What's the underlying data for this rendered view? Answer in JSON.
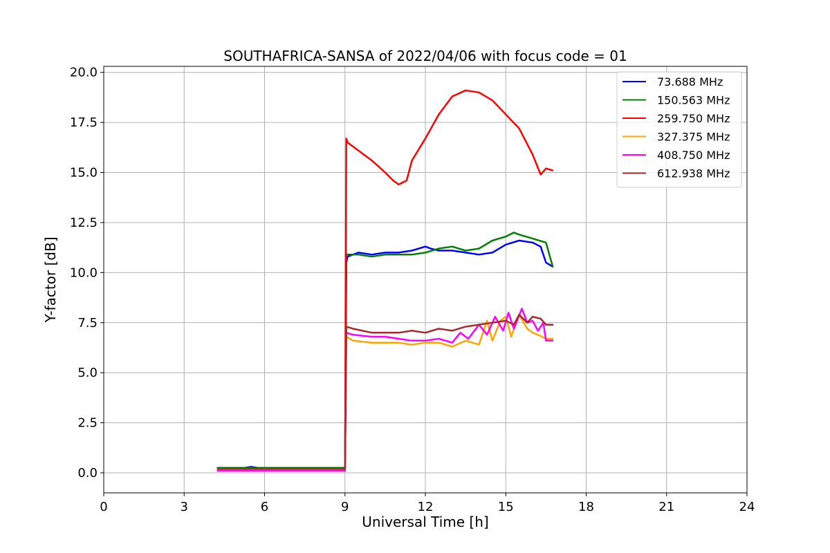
{
  "chart_data": {
    "type": "line",
    "title": "SOUTHAFRICA-SANSA of 2022/04/06 with focus code = 01",
    "xlabel": "Universal Time [h]",
    "ylabel": "Y-factor [dB]",
    "xlim": [
      0,
      24
    ],
    "ylim": [
      -1.0,
      20.3
    ],
    "xticks": [
      0,
      3,
      6,
      9,
      12,
      15,
      18,
      21,
      24
    ],
    "xtick_labels": [
      "0",
      "3",
      "6",
      "9",
      "12",
      "15",
      "18",
      "21",
      "24"
    ],
    "yticks": [
      0.0,
      2.5,
      5.0,
      7.5,
      10.0,
      12.5,
      15.0,
      17.5,
      20.0
    ],
    "ytick_labels": [
      "0.0",
      "2.5",
      "5.0",
      "7.5",
      "10.0",
      "12.5",
      "15.0",
      "17.5",
      "20.0"
    ],
    "grid": true,
    "legend_position": "top-right",
    "series": [
      {
        "name": " 73.688 MHz",
        "color": "#0000ff",
        "x": [
          4.25,
          5.0,
          5.5,
          6.0,
          7.0,
          8.0,
          9.0,
          9.05,
          9.1,
          9.3,
          9.5,
          10.0,
          10.5,
          11.0,
          11.5,
          12.0,
          12.2,
          12.5,
          13.0,
          13.5,
          14.0,
          14.5,
          15.0,
          15.5,
          16.0,
          16.3,
          16.5,
          16.75
        ],
        "y": [
          0.2,
          0.2,
          0.3,
          0.2,
          0.2,
          0.2,
          0.2,
          10.5,
          10.8,
          10.9,
          11.0,
          10.9,
          11.0,
          11.0,
          11.1,
          11.3,
          11.2,
          11.1,
          11.1,
          11.0,
          10.9,
          11.0,
          11.4,
          11.6,
          11.5,
          11.3,
          10.5,
          10.3
        ]
      },
      {
        "name": "150.563 MHz",
        "color": "#008000",
        "x": [
          4.25,
          5.0,
          6.0,
          7.0,
          8.0,
          9.0,
          9.05,
          9.3,
          9.5,
          10.0,
          10.5,
          11.0,
          11.5,
          12.0,
          12.5,
          13.0,
          13.5,
          14.0,
          14.5,
          15.0,
          15.3,
          15.5,
          16.0,
          16.5,
          16.75
        ],
        "y": [
          0.25,
          0.25,
          0.25,
          0.25,
          0.25,
          0.25,
          10.9,
          10.9,
          10.9,
          10.8,
          10.9,
          10.9,
          10.9,
          11.0,
          11.2,
          11.3,
          11.1,
          11.2,
          11.6,
          11.8,
          12.0,
          11.9,
          11.7,
          11.5,
          10.3
        ]
      },
      {
        "name": "259.750 MHz",
        "color": "#ff0000",
        "x": [
          4.25,
          5.0,
          6.0,
          7.0,
          8.0,
          9.0,
          9.05,
          9.1,
          9.5,
          10.0,
          10.5,
          10.8,
          11.0,
          11.3,
          11.5,
          12.0,
          12.5,
          13.0,
          13.5,
          14.0,
          14.5,
          15.0,
          15.5,
          16.0,
          16.3,
          16.5,
          16.75
        ],
        "y": [
          0.2,
          0.2,
          0.2,
          0.2,
          0.2,
          0.2,
          16.7,
          16.5,
          16.1,
          15.6,
          15.0,
          14.6,
          14.4,
          14.6,
          15.6,
          16.7,
          17.9,
          18.8,
          19.1,
          19.0,
          18.6,
          17.9,
          17.2,
          15.9,
          14.9,
          15.2,
          15.1
        ]
      },
      {
        "name": "327.375 MHz",
        "color": "#ffa500",
        "x": [
          4.25,
          6.0,
          8.0,
          9.0,
          9.05,
          9.3,
          10.0,
          10.5,
          11.0,
          11.5,
          12.0,
          12.5,
          13.0,
          13.5,
          14.0,
          14.3,
          14.5,
          14.8,
          15.0,
          15.2,
          15.5,
          15.8,
          16.0,
          16.2,
          16.5,
          16.75
        ],
        "y": [
          0.15,
          0.15,
          0.15,
          0.15,
          6.8,
          6.6,
          6.5,
          6.5,
          6.5,
          6.4,
          6.5,
          6.5,
          6.3,
          6.6,
          6.4,
          7.6,
          6.6,
          7.6,
          7.8,
          6.8,
          7.9,
          7.2,
          7.0,
          6.9,
          6.7,
          6.7
        ]
      },
      {
        "name": "408.750 MHz",
        "color": "#ff00ff",
        "x": [
          4.25,
          6.0,
          8.0,
          9.0,
          9.05,
          9.3,
          10.0,
          10.5,
          11.0,
          11.5,
          12.0,
          12.5,
          13.0,
          13.3,
          13.6,
          14.0,
          14.3,
          14.6,
          14.9,
          15.1,
          15.3,
          15.6,
          15.8,
          16.0,
          16.2,
          16.4,
          16.5,
          16.75
        ],
        "y": [
          0.1,
          0.1,
          0.1,
          0.1,
          7.0,
          6.9,
          6.8,
          6.8,
          6.7,
          6.6,
          6.6,
          6.7,
          6.5,
          7.0,
          6.7,
          7.4,
          6.9,
          7.8,
          7.1,
          8.0,
          7.2,
          8.2,
          7.5,
          7.6,
          7.1,
          7.5,
          6.6,
          6.6
        ]
      },
      {
        "name": "612.938 MHz",
        "color": "#a52a2a",
        "x": [
          4.25,
          6.0,
          8.0,
          9.0,
          9.05,
          9.3,
          10.0,
          10.5,
          11.0,
          11.5,
          12.0,
          12.5,
          13.0,
          13.5,
          14.0,
          14.5,
          15.0,
          15.3,
          15.5,
          15.8,
          16.0,
          16.3,
          16.5,
          16.75
        ],
        "y": [
          0.2,
          0.2,
          0.2,
          0.2,
          7.3,
          7.2,
          7.0,
          7.0,
          7.0,
          7.1,
          7.0,
          7.2,
          7.1,
          7.3,
          7.4,
          7.5,
          7.6,
          7.4,
          7.9,
          7.5,
          7.8,
          7.7,
          7.4,
          7.4
        ]
      }
    ]
  }
}
